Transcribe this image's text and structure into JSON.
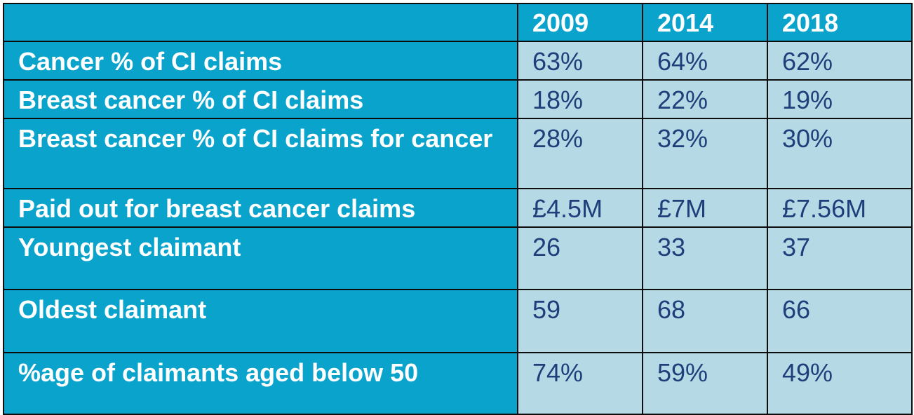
{
  "table": {
    "columns": [
      "",
      "2009",
      "2014",
      "2018"
    ],
    "rows": [
      {
        "label": "Cancer % of CI claims",
        "values": [
          "63%",
          "64%",
          "62%"
        ]
      },
      {
        "label": "Breast cancer % of CI claims",
        "values": [
          "18%",
          "22%",
          "19%"
        ]
      },
      {
        "label": "Breast cancer % of CI claims for cancer",
        "values": [
          "28%",
          "32%",
          "30%"
        ]
      },
      {
        "label": "Paid out for breast cancer claims",
        "values": [
          "£4.5M",
          "£7M",
          "£7.56M"
        ]
      },
      {
        "label": "Youngest claimant",
        "values": [
          "26",
          "33",
          "37"
        ]
      },
      {
        "label": "Oldest claimant",
        "values": [
          "59",
          "68",
          "66"
        ]
      },
      {
        "label": "%age of claimants aged below 50",
        "values": [
          "74%",
          "59%",
          "49%"
        ]
      }
    ]
  },
  "colors": {
    "header_bg": "#0aa3cc",
    "cell_bg": "#b5dae6",
    "cell_text": "#1f3f7a",
    "header_text": "#ffffff",
    "border": "#0d0d0d"
  }
}
